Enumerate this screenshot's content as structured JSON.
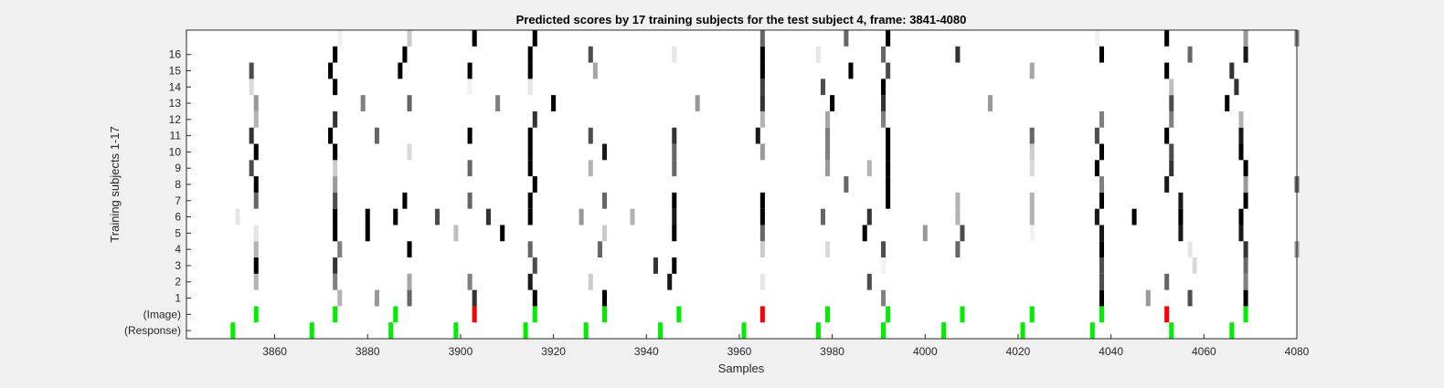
{
  "chart_data": {
    "type": "heatmap",
    "title": "Predicted scores by 17 training subjects for the test subject 4, frame: 3841-4080",
    "xlabel": "Samples",
    "ylabel": "Training subjects 1-17",
    "xlim": [
      3841,
      4080
    ],
    "xticks": [
      3860,
      3880,
      3900,
      3920,
      3940,
      3960,
      3980,
      4000,
      4020,
      4040,
      4060,
      4080
    ],
    "rows": [
      "(Response)",
      "(Image)",
      "1",
      "2",
      "3",
      "4",
      "5",
      "6",
      "7",
      "8",
      "9",
      "10",
      "11",
      "12",
      "13",
      "14",
      "15",
      "16",
      "17"
    ],
    "ytick_labels": [
      "(Response)",
      "(Image)",
      "1",
      "2",
      "3",
      "4",
      "5",
      "6",
      "7",
      "8",
      "9",
      "10",
      "11",
      "12",
      "13",
      "14",
      "15",
      "16"
    ],
    "colors": {
      "target": "#00ee00",
      "nontarget": "#ff0000"
    },
    "response_markers": [
      3851,
      3868,
      3885,
      3899,
      3914,
      3927,
      3943,
      3961,
      3977,
      3991,
      4004,
      4021,
      4036,
      4053,
      4066
    ],
    "image_markers": [
      {
        "x": 3856,
        "kind": "target"
      },
      {
        "x": 3873,
        "kind": "target"
      },
      {
        "x": 3886,
        "kind": "target"
      },
      {
        "x": 3903,
        "kind": "nontarget"
      },
      {
        "x": 3916,
        "kind": "target"
      },
      {
        "x": 3931,
        "kind": "target"
      },
      {
        "x": 3947,
        "kind": "target"
      },
      {
        "x": 3965,
        "kind": "nontarget"
      },
      {
        "x": 3979,
        "kind": "target"
      },
      {
        "x": 3992,
        "kind": "target"
      },
      {
        "x": 4008,
        "kind": "target"
      },
      {
        "x": 4023,
        "kind": "target"
      },
      {
        "x": 4038,
        "kind": "target"
      },
      {
        "x": 4052,
        "kind": "nontarget"
      },
      {
        "x": 4069,
        "kind": "target"
      }
    ],
    "scores": [
      {
        "row": "1",
        "cells": [
          [
            3874,
            0.3
          ],
          [
            3882,
            0.4
          ],
          [
            3889,
            0.6
          ],
          [
            3903,
            0.8
          ],
          [
            3916,
            1.0
          ],
          [
            3931,
            1.0
          ],
          [
            3991,
            0.5
          ],
          [
            4038,
            1.0
          ],
          [
            4048,
            0.4
          ],
          [
            4057,
            0.7
          ],
          [
            4069,
            1.0
          ]
        ]
      },
      {
        "row": "2",
        "cells": [
          [
            3856,
            0.3
          ],
          [
            3873,
            0.5
          ],
          [
            3889,
            0.35
          ],
          [
            3902,
            0.5
          ],
          [
            3915,
            0.9
          ],
          [
            3928,
            0.2
          ],
          [
            3945,
            0.9
          ],
          [
            3965,
            0.1
          ],
          [
            3988,
            0.7
          ],
          [
            4038,
            0.7
          ],
          [
            4052,
            0.6
          ],
          [
            4069,
            0.5
          ]
        ]
      },
      {
        "row": "3",
        "cells": [
          [
            3856,
            1.0
          ],
          [
            3873,
            0.8
          ],
          [
            3916,
            0.7
          ],
          [
            3942,
            0.8
          ],
          [
            3946,
            1.0
          ],
          [
            3991,
            0.05
          ],
          [
            4038,
            0.7
          ],
          [
            4058,
            0.15
          ],
          [
            4069,
            0.6
          ]
        ]
      },
      {
        "row": "4",
        "cells": [
          [
            3856,
            0.3
          ],
          [
            3874,
            0.5
          ],
          [
            3889,
            1.0
          ],
          [
            3915,
            0.6
          ],
          [
            3930,
            0.6
          ],
          [
            3965,
            0.2
          ],
          [
            3979,
            0.15
          ],
          [
            3991,
            0.7
          ],
          [
            4007,
            0.6
          ],
          [
            4038,
            1.0
          ],
          [
            4057,
            0.1
          ],
          [
            4069,
            0.8
          ],
          [
            4080,
            0.4
          ]
        ]
      },
      {
        "row": "5",
        "cells": [
          [
            3856,
            0.1
          ],
          [
            3873,
            1.0
          ],
          [
            3880,
            1.0
          ],
          [
            3899,
            0.25
          ],
          [
            3909,
            1.0
          ],
          [
            3931,
            0.2
          ],
          [
            3946,
            1.0
          ],
          [
            3965,
            0.6
          ],
          [
            3987,
            1.0
          ],
          [
            4000,
            0.4
          ],
          [
            4008,
            0.7
          ],
          [
            4023,
            0.05
          ],
          [
            4038,
            0.9
          ],
          [
            4055,
            0.9
          ],
          [
            4068,
            0.9
          ]
        ]
      },
      {
        "row": "6",
        "cells": [
          [
            3852,
            0.1
          ],
          [
            3873,
            1.0
          ],
          [
            3880,
            1.0
          ],
          [
            3886,
            1.0
          ],
          [
            3895,
            0.7
          ],
          [
            3906,
            0.8
          ],
          [
            3915,
            1.0
          ],
          [
            3926,
            0.4
          ],
          [
            3937,
            0.3
          ],
          [
            3946,
            0.9
          ],
          [
            3965,
            1.0
          ],
          [
            3978,
            0.6
          ],
          [
            3988,
            0.8
          ],
          [
            4007,
            0.3
          ],
          [
            4023,
            0.3
          ],
          [
            4037,
            0.9
          ],
          [
            4045,
            1.0
          ],
          [
            4055,
            1.0
          ],
          [
            4068,
            1.0
          ]
        ]
      },
      {
        "row": "7",
        "cells": [
          [
            3856,
            0.6
          ],
          [
            3873,
            0.7
          ],
          [
            3888,
            1.0
          ],
          [
            3902,
            0.6
          ],
          [
            3915,
            1.0
          ],
          [
            3931,
            0.6
          ],
          [
            3946,
            1.0
          ],
          [
            3965,
            1.0
          ],
          [
            3992,
            1.0
          ],
          [
            4007,
            0.3
          ],
          [
            4023,
            0.3
          ],
          [
            4038,
            1.0
          ],
          [
            4055,
            0.9
          ],
          [
            4069,
            1.0
          ]
        ]
      },
      {
        "row": "8",
        "cells": [
          [
            3856,
            1.0
          ],
          [
            3873,
            0.4
          ],
          [
            3916,
            1.0
          ],
          [
            3983,
            0.6
          ],
          [
            3992,
            1.0
          ],
          [
            4038,
            0.5
          ],
          [
            4052,
            0.9
          ],
          [
            4069,
            0.4
          ],
          [
            4080,
            0.6
          ]
        ]
      },
      {
        "row": "9",
        "cells": [
          [
            3855,
            0.7
          ],
          [
            3873,
            0.2
          ],
          [
            3902,
            0.6
          ],
          [
            3915,
            1.0
          ],
          [
            3928,
            0.3
          ],
          [
            3946,
            0.6
          ],
          [
            3979,
            0.4
          ],
          [
            3988,
            0.3
          ],
          [
            3992,
            1.0
          ],
          [
            4023,
            0.15
          ],
          [
            4037,
            1.0
          ],
          [
            4053,
            0.8
          ],
          [
            4069,
            1.0
          ]
        ]
      },
      {
        "row": "10",
        "cells": [
          [
            3856,
            1.0
          ],
          [
            3873,
            1.0
          ],
          [
            3889,
            0.15
          ],
          [
            3915,
            1.0
          ],
          [
            3931,
            0.9
          ],
          [
            3946,
            0.6
          ],
          [
            3965,
            0.4
          ],
          [
            3979,
            0.5
          ],
          [
            3992,
            1.0
          ],
          [
            4023,
            0.2
          ],
          [
            4038,
            1.0
          ],
          [
            4053,
            0.7
          ],
          [
            4068,
            1.0
          ]
        ]
      },
      {
        "row": "11",
        "cells": [
          [
            3855,
            0.8
          ],
          [
            3872,
            1.0
          ],
          [
            3882,
            0.6
          ],
          [
            3902,
            1.0
          ],
          [
            3915,
            1.0
          ],
          [
            3928,
            0.7
          ],
          [
            3946,
            0.8
          ],
          [
            3964,
            0.9
          ],
          [
            3979,
            0.5
          ],
          [
            3992,
            1.0
          ],
          [
            4023,
            0.6
          ],
          [
            4037,
            0.7
          ],
          [
            4052,
            1.0
          ],
          [
            4068,
            0.9
          ]
        ]
      },
      {
        "row": "12",
        "cells": [
          [
            3856,
            0.3
          ],
          [
            3873,
            0.8
          ],
          [
            3916,
            0.8
          ],
          [
            3965,
            0.3
          ],
          [
            3979,
            0.35
          ],
          [
            3991,
            0.5
          ],
          [
            4038,
            0.5
          ],
          [
            4053,
            0.5
          ],
          [
            4068,
            0.3
          ]
        ]
      },
      {
        "row": "13",
        "cells": [
          [
            3856,
            0.4
          ],
          [
            3879,
            0.5
          ],
          [
            3889,
            0.6
          ],
          [
            3908,
            0.5
          ],
          [
            3920,
            1.0
          ],
          [
            3951,
            0.4
          ],
          [
            3965,
            0.8
          ],
          [
            3980,
            1.0
          ],
          [
            3991,
            0.8
          ],
          [
            4014,
            0.4
          ],
          [
            4053,
            0.7
          ],
          [
            4065,
            1.0
          ]
        ]
      },
      {
        "row": "14",
        "cells": [
          [
            3855,
            0.15
          ],
          [
            3873,
            1.0
          ],
          [
            3902,
            0.05
          ],
          [
            3915,
            0.1
          ],
          [
            3965,
            0.75
          ],
          [
            3978,
            0.7
          ],
          [
            3991,
            1.0
          ],
          [
            4053,
            0.25
          ],
          [
            4067,
            0.8
          ]
        ]
      },
      {
        "row": "15",
        "cells": [
          [
            3855,
            0.7
          ],
          [
            3872,
            1.0
          ],
          [
            3887,
            1.0
          ],
          [
            3902,
            1.0
          ],
          [
            3915,
            1.0
          ],
          [
            3929,
            0.35
          ],
          [
            3965,
            1.0
          ],
          [
            3984,
            1.0
          ],
          [
            3992,
            0.7
          ],
          [
            4023,
            0.35
          ],
          [
            4052,
            1.0
          ],
          [
            4066,
            0.8
          ]
        ]
      },
      {
        "row": "16",
        "cells": [
          [
            3873,
            1.0
          ],
          [
            3888,
            1.0
          ],
          [
            3915,
            1.0
          ],
          [
            3928,
            0.7
          ],
          [
            3946,
            0.1
          ],
          [
            3965,
            1.0
          ],
          [
            3977,
            0.1
          ],
          [
            3991,
            0.6
          ],
          [
            4007,
            0.8
          ],
          [
            4038,
            1.0
          ],
          [
            4057,
            0.6
          ],
          [
            4069,
            0.9
          ]
        ]
      },
      {
        "row": "17",
        "cells": [
          [
            3874,
            0.05
          ],
          [
            3889,
            0.2
          ],
          [
            3903,
            1.0
          ],
          [
            3916,
            1.0
          ],
          [
            3965,
            0.6
          ],
          [
            3983,
            0.6
          ],
          [
            3992,
            1.0
          ],
          [
            4037,
            0.05
          ],
          [
            4052,
            1.0
          ],
          [
            4069,
            0.4
          ],
          [
            4080,
            0.5
          ]
        ]
      }
    ]
  }
}
